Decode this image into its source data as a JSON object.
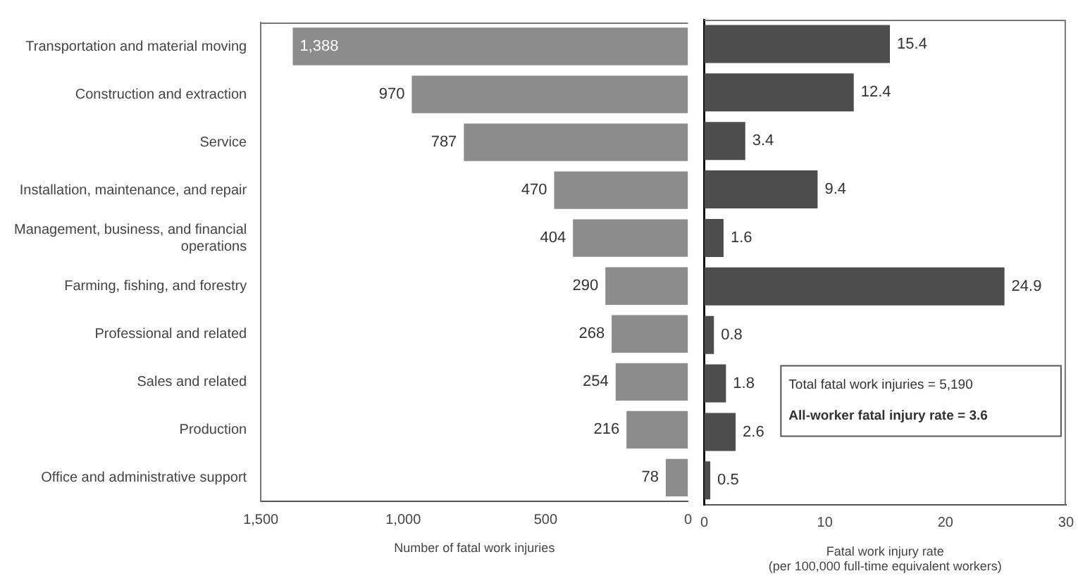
{
  "chart_data": [
    {
      "type": "bar",
      "orientation": "horizontal",
      "categories": [
        "Transportation and material moving",
        "Construction and extraction",
        "Service",
        "Installation, maintenance, and repair",
        "Management, business, and financial operations",
        "Farming, fishing, and forestry",
        "Professional and related",
        "Sales and related",
        "Production",
        "Office and administrative support"
      ],
      "values": [
        1388,
        970,
        787,
        470,
        404,
        290,
        268,
        254,
        216,
        78
      ],
      "value_labels": [
        "1,388",
        "970",
        "787",
        "470",
        "404",
        "290",
        "268",
        "254",
        "216",
        "78"
      ],
      "color": "#8c8c8c",
      "xlabel": "Number of fatal work injuries",
      "xlim": [
        1500,
        0
      ],
      "xticks": [
        {
          "value": 1500,
          "label": "1,500"
        },
        {
          "value": 1000,
          "label": "1,000"
        },
        500,
        0
      ],
      "grid": false,
      "legend": false
    },
    {
      "type": "bar",
      "orientation": "horizontal",
      "categories": [
        null,
        null,
        null,
        null,
        null,
        null,
        null,
        null,
        null,
        null
      ],
      "values": [
        15.4,
        12.4,
        3.4,
        9.4,
        1.6,
        24.9,
        0.8,
        1.8,
        2.6,
        0.5
      ],
      "data_labels": true,
      "color": "#4d4d4d",
      "xlabel": "Fatal work injury rate\n(per 100,000 full-time equivalent workers)",
      "xlim": [
        0,
        30
      ],
      "xticks": [
        0,
        10,
        20,
        30
      ],
      "tick_labels": "x",
      "grid": false,
      "legend": false,
      "annotations": [
        "Total fatal work injuries = 5,190",
        "All-worker fatal injury rate = 3.6"
      ]
    }
  ]
}
